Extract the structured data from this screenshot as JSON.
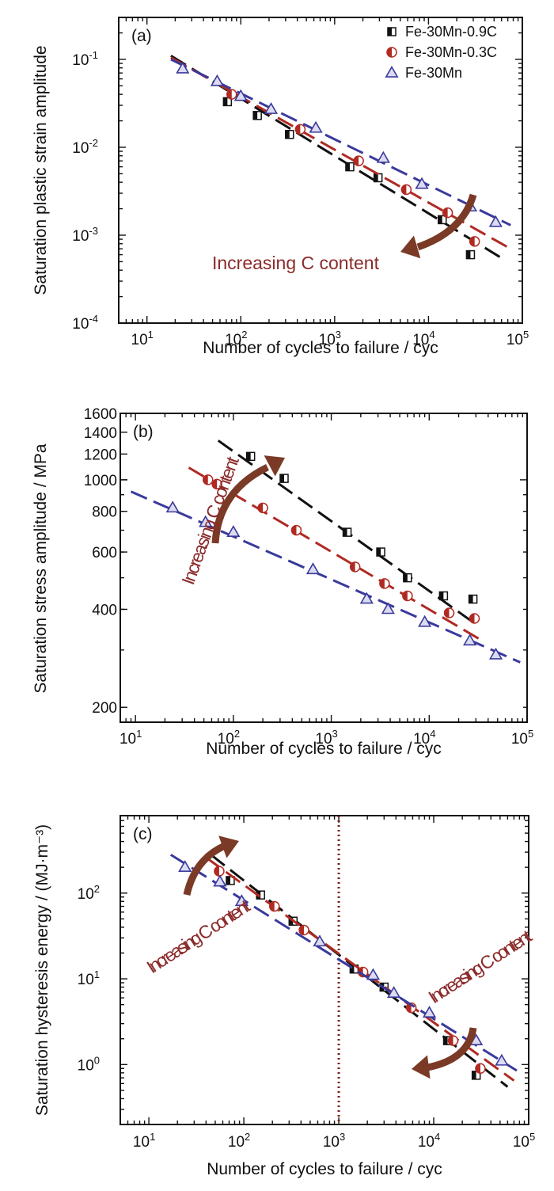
{
  "colors": {
    "fe30mn09c": "#111111",
    "fe30mn03c": "#b02a22",
    "fe30mn": "#3a3a9c",
    "arrow": "#7a3a26",
    "annotation": "#8b2a2a",
    "vline": "#7a1f14"
  },
  "legend": {
    "placement": "top-right",
    "entries": [
      "Fe-30Mn-0.9C",
      "Fe-30Mn-0.3C",
      "Fe-30Mn"
    ]
  },
  "chart_data": [
    {
      "type": "scatter",
      "panel_label": "(a)",
      "xlabel": "Number of cycles to failure / cyc",
      "ylabel": "Saturation plastic strain amplitude",
      "x_scale": "log",
      "y_scale": "log",
      "xlim": [
        5,
        100000
      ],
      "ylim": [
        0.0001,
        0.3
      ],
      "x_ticks": [
        10,
        100,
        1000,
        10000,
        100000
      ],
      "x_tick_labels": [
        [
          "10",
          "1"
        ],
        [
          "10",
          "2"
        ],
        [
          "10",
          "3"
        ],
        [
          "10",
          "4"
        ],
        [
          "10",
          "5"
        ]
      ],
      "y_ticks": [
        0.0001,
        0.001,
        0.01,
        0.1
      ],
      "y_tick_labels": [
        [
          "10",
          "-4"
        ],
        [
          "10",
          "-3"
        ],
        [
          "10",
          "-2"
        ],
        [
          "10",
          "-1"
        ]
      ],
      "annotations": [
        {
          "text": "Increasing C content",
          "arrow": "down-left"
        }
      ],
      "series": [
        {
          "name": "Fe-30Mn-0.9C",
          "marker": "square",
          "color_key": "fe30mn09c",
          "points": [
            [
              72,
              0.033
            ],
            [
              150,
              0.023
            ],
            [
              330,
              0.014
            ],
            [
              1450,
              0.006
            ],
            [
              2900,
              0.0045
            ],
            [
              14000,
              0.0015
            ],
            [
              28000,
              0.0006
            ]
          ],
          "fit": [
            [
              18,
              0.11
            ],
            [
              60000,
              0.00055
            ]
          ]
        },
        {
          "name": "Fe-30Mn-0.3C",
          "marker": "circle-half",
          "color_key": "fe30mn03c",
          "points": [
            [
              80,
              0.04
            ],
            [
              430,
              0.016
            ],
            [
              1800,
              0.007
            ],
            [
              5800,
              0.0033
            ],
            [
              16000,
              0.0018
            ],
            [
              31000,
              0.00085
            ]
          ],
          "fit": [
            [
              18,
              0.105
            ],
            [
              75000,
              0.0007
            ]
          ]
        },
        {
          "name": "Fe-30Mn",
          "marker": "triangle",
          "color_key": "fe30mn",
          "points": [
            [
              24,
              0.078
            ],
            [
              56,
              0.056
            ],
            [
              100,
              0.038
            ],
            [
              210,
              0.027
            ],
            [
              630,
              0.0165
            ],
            [
              3300,
              0.0075
            ],
            [
              8500,
              0.0038
            ],
            [
              28000,
              0.0021
            ],
            [
              52000,
              0.0014
            ]
          ],
          "fit": [
            [
              18,
              0.1
            ],
            [
              75000,
              0.0013
            ]
          ]
        }
      ]
    },
    {
      "type": "scatter",
      "panel_label": "(b)",
      "xlabel": "Number of cycles to failure / cyc",
      "ylabel": "Saturation stress amplitude / MPa",
      "x_scale": "log",
      "y_scale": "log",
      "xlim": [
        7,
        100000
      ],
      "ylim": [
        180,
        1600
      ],
      "x_ticks": [
        10,
        100,
        1000,
        10000,
        100000
      ],
      "x_tick_labels": [
        [
          "10",
          "1"
        ],
        [
          "10",
          "2"
        ],
        [
          "10",
          "3"
        ],
        [
          "10",
          "4"
        ],
        [
          "10",
          "5"
        ]
      ],
      "y_ticks": [
        200,
        400,
        600,
        800,
        1000,
        1200,
        1400,
        1600
      ],
      "y_tick_labels": [
        "200",
        "400",
        "600",
        "800",
        "1000",
        "1200",
        "1400",
        "1600"
      ],
      "annotations": [
        {
          "text": "Increasing C content",
          "arrow": "up-right"
        }
      ],
      "series": [
        {
          "name": "Fe-30Mn-0.9C",
          "marker": "square",
          "color_key": "fe30mn09c",
          "points": [
            [
              150,
              1180
            ],
            [
              330,
              1010
            ],
            [
              1450,
              690
            ],
            [
              3200,
              600
            ],
            [
              6000,
              500
            ],
            [
              14000,
              440
            ],
            [
              28000,
              430
            ]
          ],
          "fit": [
            [
              70,
              1320
            ],
            [
              30000,
              360
            ]
          ]
        },
        {
          "name": "Fe-30Mn-0.3C",
          "marker": "circle-half",
          "color_key": "fe30mn03c",
          "points": [
            [
              55,
              1000
            ],
            [
              68,
              970
            ],
            [
              200,
              820
            ],
            [
              440,
              700
            ],
            [
              1750,
              540
            ],
            [
              3500,
              480
            ],
            [
              6000,
              440
            ],
            [
              16000,
              390
            ],
            [
              29000,
              375
            ]
          ],
          "fit": [
            [
              35,
              1090
            ],
            [
              35000,
              320
            ]
          ]
        },
        {
          "name": "Fe-30Mn",
          "marker": "triangle",
          "color_key": "fe30mn",
          "points": [
            [
              24,
              820
            ],
            [
              52,
              740
            ],
            [
              100,
              690
            ],
            [
              650,
              530
            ],
            [
              2300,
              430
            ],
            [
              3800,
              400
            ],
            [
              9000,
              365
            ],
            [
              26000,
              320
            ],
            [
              48000,
              290
            ]
          ],
          "fit": [
            [
              9,
              920
            ],
            [
              85000,
              275
            ]
          ]
        }
      ]
    },
    {
      "type": "scatter",
      "panel_label": "(c)",
      "xlabel": "Number of cycles to failure / cyc",
      "ylabel": "Saturation hysteresis energy / (MJ·m⁻³)",
      "x_scale": "log",
      "y_scale": "log",
      "xlim": [
        5,
        100000
      ],
      "ylim": [
        0.2,
        800
      ],
      "x_ticks": [
        10,
        100,
        1000,
        10000,
        100000
      ],
      "x_tick_labels": [
        [
          "10",
          "1"
        ],
        [
          "10",
          "2"
        ],
        [
          "10",
          "3"
        ],
        [
          "10",
          "4"
        ],
        [
          "10",
          "5"
        ]
      ],
      "y_ticks": [
        1,
        10,
        100
      ],
      "y_tick_labels": [
        [
          "10",
          "0"
        ],
        [
          "10",
          "1"
        ],
        [
          "10",
          "2"
        ]
      ],
      "vertical_line": {
        "x": 1000,
        "style": "dotted"
      },
      "annotations": [
        {
          "text": "Increasing C content",
          "arrow": "up-right"
        },
        {
          "text": "Increasing C content",
          "arrow": "down-left"
        }
      ],
      "series": [
        {
          "name": "Fe-30Mn-0.9C",
          "marker": "square",
          "color_key": "fe30mn09c",
          "points": [
            [
              72,
              140
            ],
            [
              150,
              95
            ],
            [
              330,
              47
            ],
            [
              1450,
              13
            ],
            [
              3000,
              8
            ],
            [
              14000,
              1.9
            ],
            [
              28000,
              0.75
            ]
          ],
          "fit": [
            [
              45,
              280
            ],
            [
              60000,
              0.55
            ]
          ]
        },
        {
          "name": "Fe-30Mn-0.3C",
          "marker": "circle-half",
          "color_key": "fe30mn03c",
          "points": [
            [
              55,
              180
            ],
            [
              210,
              70
            ],
            [
              430,
              37
            ],
            [
              1800,
              12
            ],
            [
              5800,
              4.6
            ],
            [
              16000,
              1.9
            ],
            [
              31000,
              0.9
            ]
          ],
          "fit": [
            [
              40,
              260
            ],
            [
              70000,
              0.65
            ]
          ]
        },
        {
          "name": "Fe-30Mn",
          "marker": "triangle",
          "color_key": "fe30mn",
          "points": [
            [
              24,
              200
            ],
            [
              56,
              135
            ],
            [
              95,
              80
            ],
            [
              630,
              27
            ],
            [
              2300,
              11
            ],
            [
              3800,
              6.8
            ],
            [
              9000,
              4
            ],
            [
              28000,
              1.9
            ],
            [
              52000,
              1.1
            ]
          ],
          "fit": [
            [
              17,
              280
            ],
            [
              75000,
              0.85
            ]
          ]
        }
      ]
    }
  ]
}
